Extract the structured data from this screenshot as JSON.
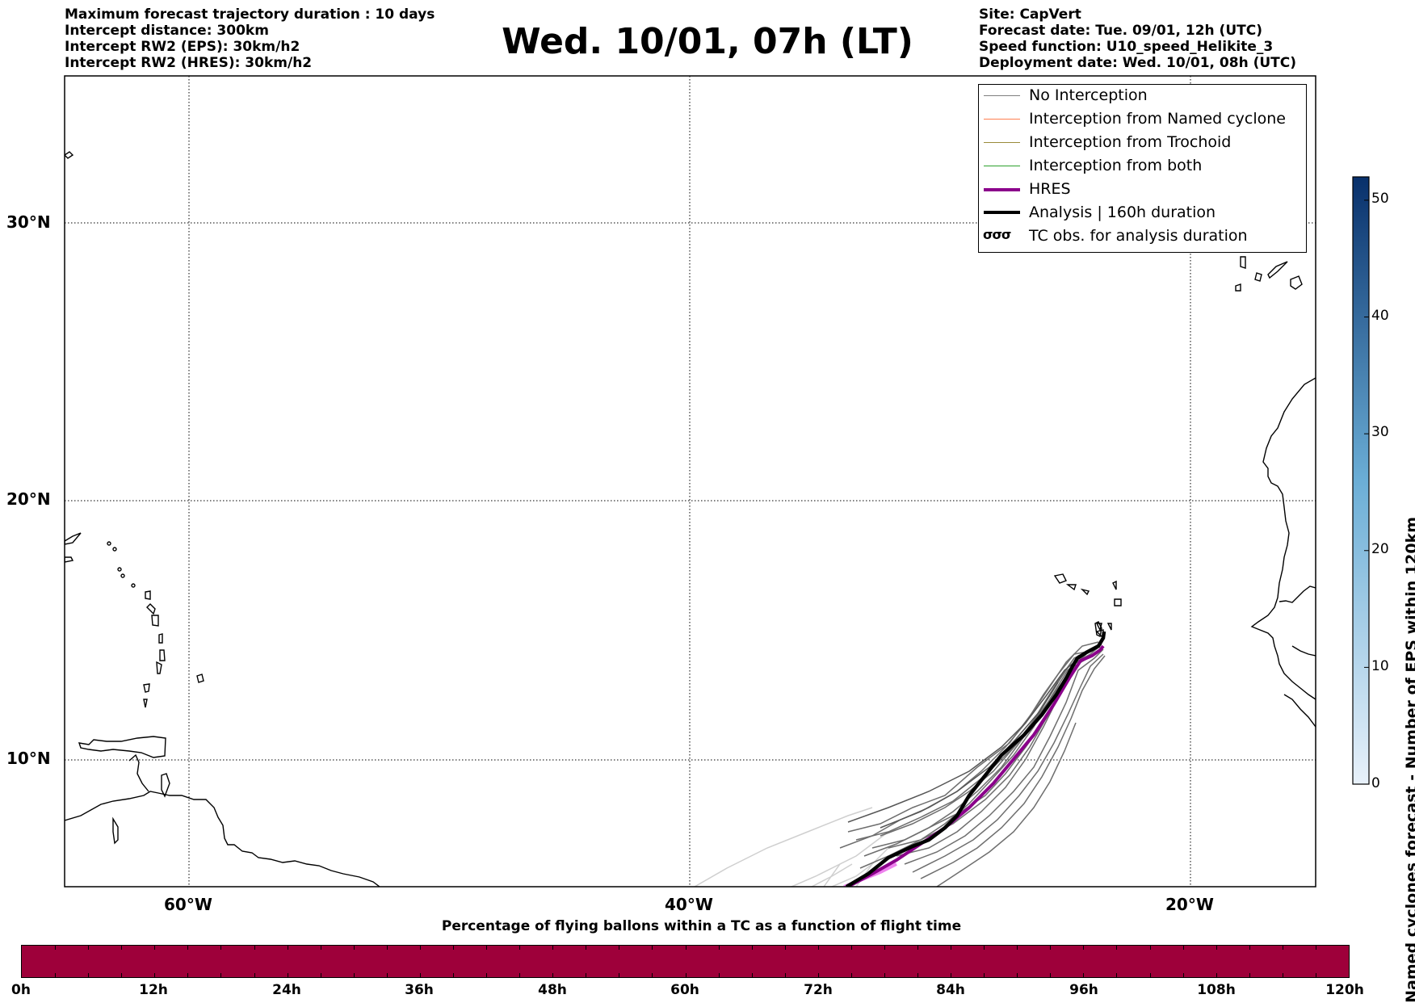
{
  "header_left": [
    "Maximum forecast trajectory duration : 10 days",
    "Intercept distance: 300km",
    "Intercept RW2 (EPS):  30km/h2",
    "Intercept RW2 (HRES): 30km/h2"
  ],
  "title": "Wed. 10/01, 07h (LT)",
  "header_right": [
    "Site: CapVert",
    "Forecast date: Tue. 09/01, 12h (UTC)",
    "Speed function: U10_speed_Helikite_3",
    "Deployment date: Wed. 10/01, 08h (UTC)"
  ],
  "legend": [
    {
      "label": "No Interception",
      "color": "#7f7f7f",
      "width": 1.5,
      "kind": "line"
    },
    {
      "label": "Interception from Named cyclone",
      "color": "#ff7f50",
      "width": 1.5,
      "kind": "line"
    },
    {
      "label": "Interception from Trochoid",
      "color": "#9a8b3a",
      "width": 1.5,
      "kind": "line"
    },
    {
      "label": "Interception from both",
      "color": "#2ca02c",
      "width": 1.5,
      "kind": "line"
    },
    {
      "label": "HRES",
      "color": "#8b008b",
      "width": 4,
      "kind": "line"
    },
    {
      "label": "Analysis | 160h duration",
      "color": "#000000",
      "width": 4.5,
      "kind": "line"
    },
    {
      "label": "TC obs. for analysis duration",
      "symbol": "σσσ",
      "kind": "symbol"
    }
  ],
  "map": {
    "lat_labels": [
      "30°N",
      "20°N",
      "10°N"
    ],
    "lon_labels": [
      "60°W",
      "40°W",
      "20°W"
    ],
    "lat_values": [
      30,
      20,
      10
    ],
    "lon_values": [
      -60,
      -40,
      -20
    ]
  },
  "colorbar": {
    "label": "Named cyclones forecast - Number of EPS within 120km",
    "ticks": [
      "0",
      "10",
      "20",
      "30",
      "40",
      "50"
    ],
    "tick_values": [
      0,
      10,
      20,
      30,
      40,
      50
    ],
    "max": 52,
    "color_low": "#e8f1fa",
    "color_high": "#08306b"
  },
  "percentage_bar": {
    "title": "Percentage of flying ballons within a TC as a function of flight time",
    "ticks": [
      "0h",
      "12h",
      "24h",
      "36h",
      "48h",
      "60h",
      "72h",
      "84h",
      "96h",
      "108h",
      "120h"
    ],
    "tick_values": [
      0,
      12,
      24,
      36,
      48,
      60,
      72,
      84,
      96,
      108,
      120
    ],
    "fill_color": "#9e003a"
  }
}
